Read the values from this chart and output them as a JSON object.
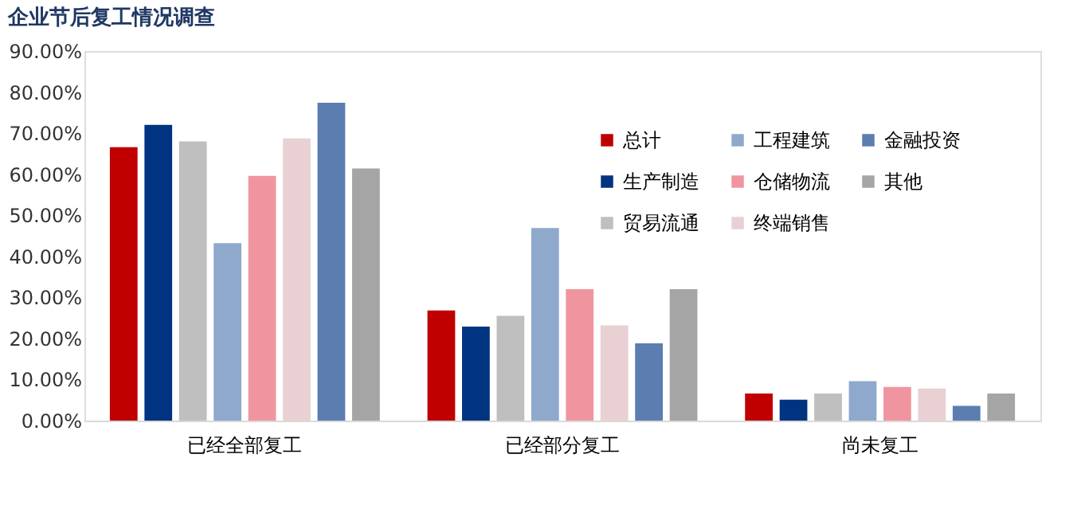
{
  "chart_data": {
    "type": "bar",
    "title": "企业节后复工情况调查",
    "categories": [
      "已经全部复工",
      "已经部分复工",
      "尚未复工"
    ],
    "series": [
      {
        "name": "总计",
        "color": "#c00000",
        "values": [
          66.6,
          26.8,
          6.6
        ]
      },
      {
        "name": "生产制造",
        "color": "#003380",
        "values": [
          72.0,
          22.9,
          5.1
        ]
      },
      {
        "name": "贸易流通",
        "color": "#bfbfbf",
        "values": [
          68.0,
          25.5,
          6.6
        ]
      },
      {
        "name": "工程建筑",
        "color": "#8ea9cc",
        "values": [
          43.2,
          46.9,
          9.6
        ]
      },
      {
        "name": "仓储物流",
        "color": "#f0959f",
        "values": [
          59.6,
          32.0,
          8.2
        ]
      },
      {
        "name": "终端销售",
        "color": "#e8d0d3",
        "values": [
          68.7,
          23.2,
          7.8
        ]
      },
      {
        "name": "金融投资",
        "color": "#5b7db0",
        "values": [
          77.4,
          18.8,
          3.6
        ]
      },
      {
        "name": "其他",
        "color": "#a5a5a5",
        "values": [
          61.4,
          32.0,
          6.6
        ]
      }
    ],
    "ylim": [
      0,
      90
    ],
    "yticks": [
      {
        "value": 0,
        "label": "0.00%"
      },
      {
        "value": 10,
        "label": "10.00%"
      },
      {
        "value": 20,
        "label": "20.00%"
      },
      {
        "value": 30,
        "label": "30.00%"
      },
      {
        "value": 40,
        "label": "40.00%"
      },
      {
        "value": 50,
        "label": "50.00%"
      },
      {
        "value": 60,
        "label": "60.00%"
      },
      {
        "value": 70,
        "label": "70.00%"
      },
      {
        "value": 80,
        "label": "80.00%"
      },
      {
        "value": 90,
        "label": "90.00%"
      }
    ],
    "grid": false,
    "legend": "top right"
  }
}
